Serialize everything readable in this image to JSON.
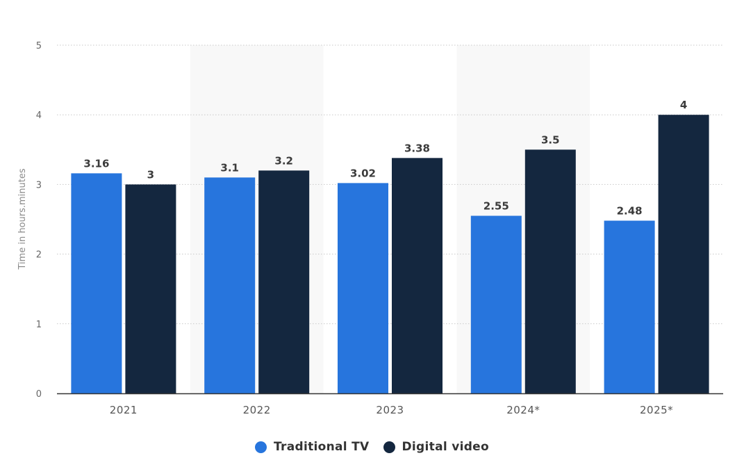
{
  "chart_data": {
    "type": "bar",
    "categories": [
      "2021",
      "2022",
      "2023",
      "2024*",
      "2025*"
    ],
    "series": [
      {
        "name": "Traditional TV",
        "values": [
          3.16,
          3.1,
          3.02,
          2.55,
          2.48
        ],
        "labels": [
          "3.16",
          "3.1",
          "3.02",
          "2.55",
          "2.48"
        ]
      },
      {
        "name": "Digital video",
        "values": [
          3,
          3.2,
          3.38,
          3.5,
          4
        ],
        "labels": [
          "3",
          "3.2",
          "3.38",
          "3.5",
          "4"
        ]
      }
    ],
    "title": "",
    "xlabel": "",
    "ylabel": "Time in hours.minutes",
    "ylim": [
      0,
      5
    ],
    "yticks": [
      "0",
      "1",
      "2",
      "3",
      "4",
      "5"
    ],
    "grid": true,
    "legend_position": "bottom-center",
    "colors": {
      "traditional_tv": "#2775dd",
      "digital_video": "#14273f",
      "band": "#f8f8f8",
      "grid": "#c8c8c8",
      "axis": "#333333"
    }
  }
}
